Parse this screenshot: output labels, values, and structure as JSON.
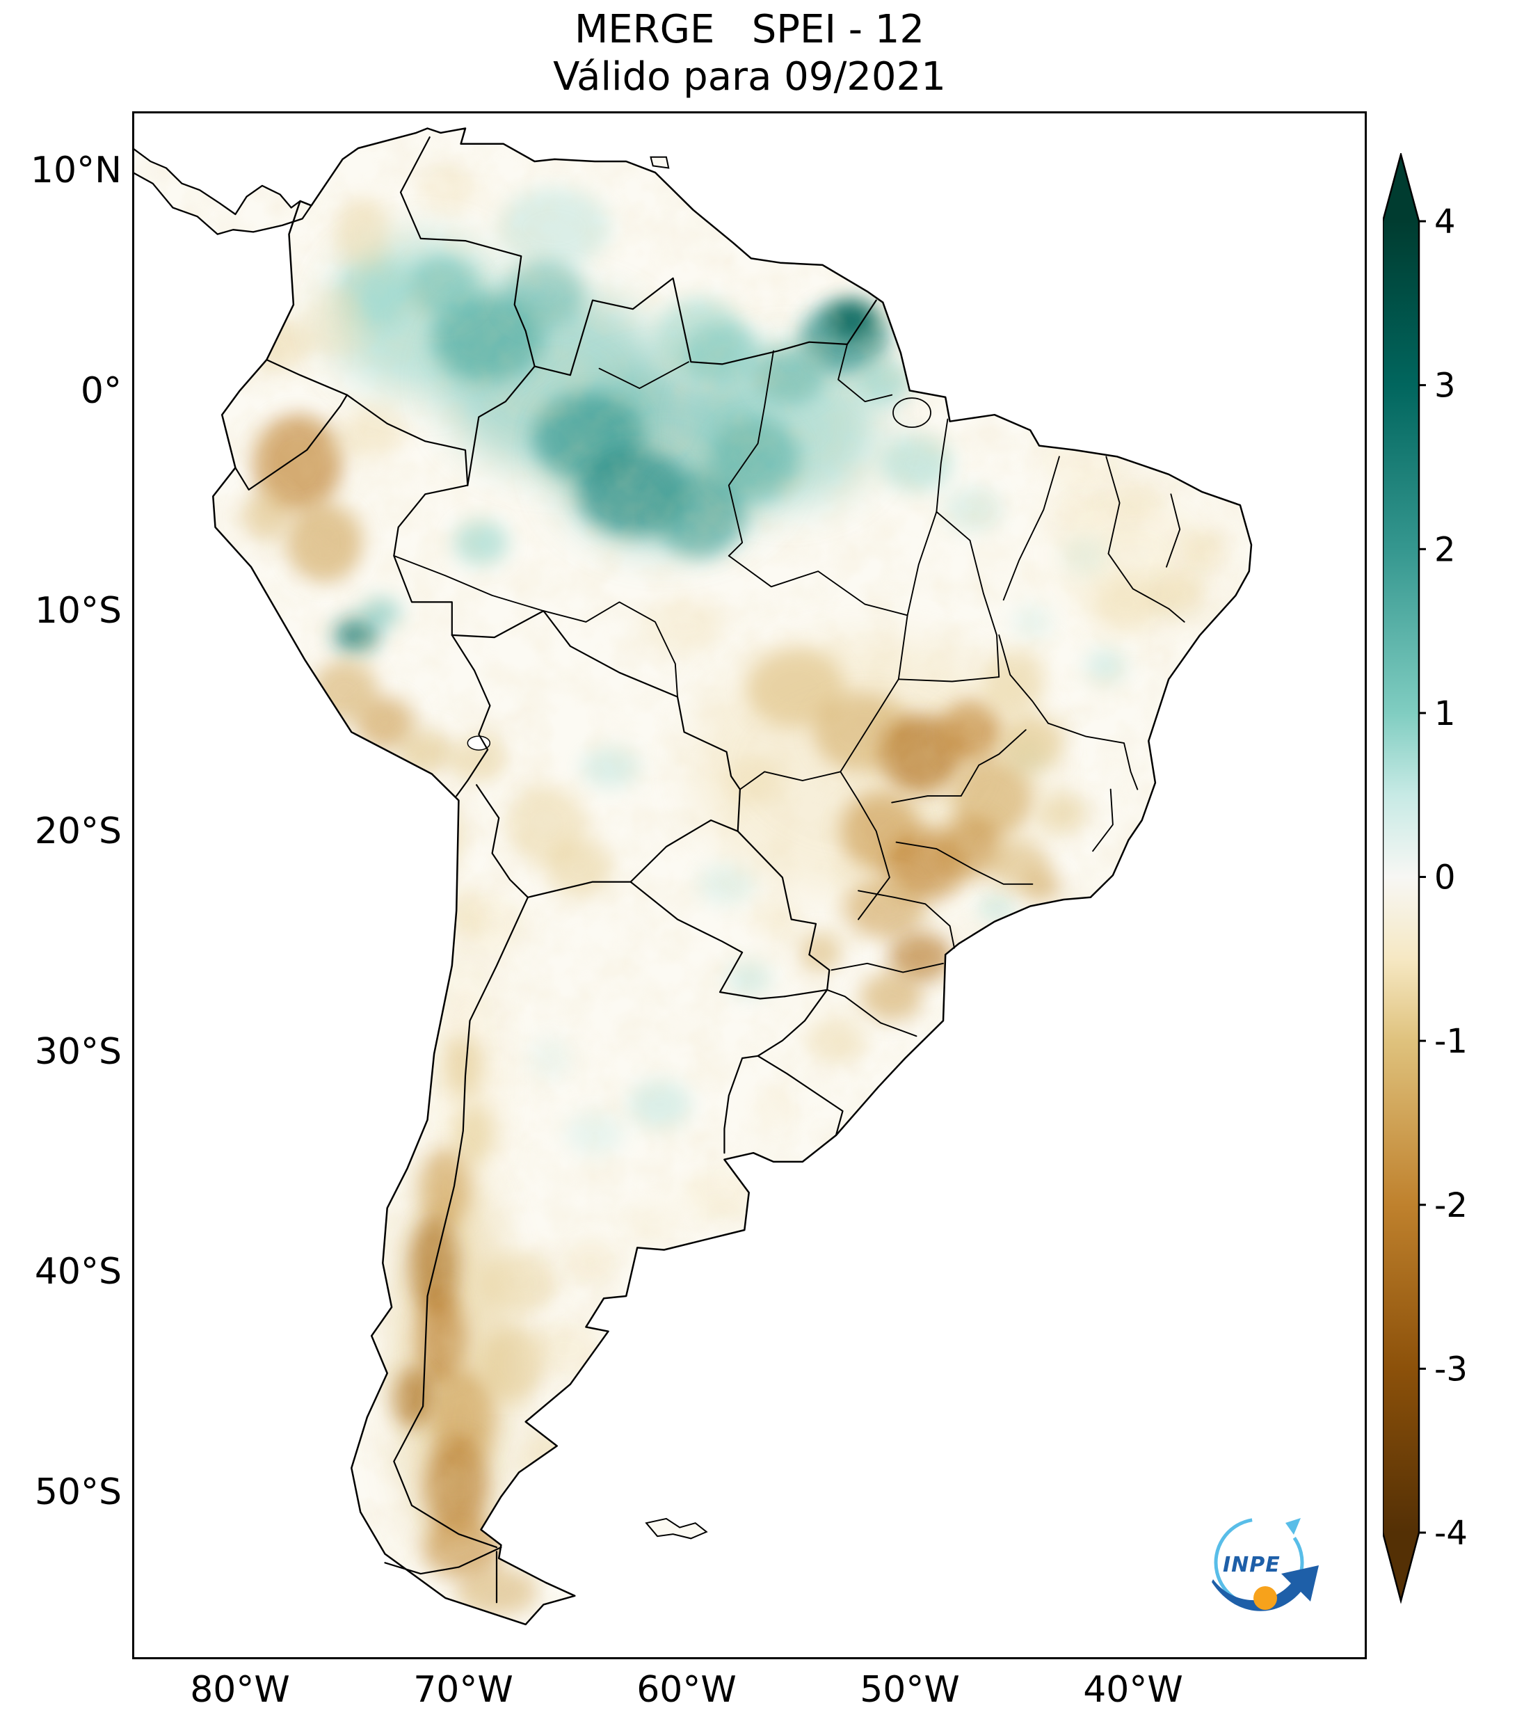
{
  "title": "MERGE   SPEI - 12",
  "subtitle": "Válido para 09/2021",
  "map": {
    "lat_ticks": [
      {
        "label": "10°N",
        "value": 10
      },
      {
        "label": "0°",
        "value": 0
      },
      {
        "label": "10°S",
        "value": -10
      },
      {
        "label": "20°S",
        "value": -20
      },
      {
        "label": "30°S",
        "value": -30
      },
      {
        "label": "40°S",
        "value": -40
      },
      {
        "label": "50°S",
        "value": -50
      }
    ],
    "lon_ticks": [
      {
        "label": "80°W",
        "value": 80
      },
      {
        "label": "70°W",
        "value": 70
      },
      {
        "label": "60°W",
        "value": 60
      },
      {
        "label": "50°W",
        "value": 50
      },
      {
        "label": "40°W",
        "value": 40
      }
    ]
  },
  "colorbar": {
    "ticks": [
      {
        "label": "4",
        "value": 4
      },
      {
        "label": "3",
        "value": 3
      },
      {
        "label": "2",
        "value": 2
      },
      {
        "label": "1",
        "value": 1
      },
      {
        "label": "0",
        "value": 0
      },
      {
        "label": "-1",
        "value": -1
      },
      {
        "label": "-2",
        "value": -2
      },
      {
        "label": "-3",
        "value": -3
      },
      {
        "label": "-4",
        "value": -4
      }
    ],
    "stops": [
      {
        "value": -4,
        "color": "#543005"
      },
      {
        "value": -3,
        "color": "#8c510a"
      },
      {
        "value": -2,
        "color": "#bf812d"
      },
      {
        "value": -1,
        "color": "#dfc27d"
      },
      {
        "value": -0.5,
        "color": "#f6e8c3"
      },
      {
        "value": 0,
        "color": "#f7f7f4"
      },
      {
        "value": 0.5,
        "color": "#c7eae5"
      },
      {
        "value": 1,
        "color": "#80cdc1"
      },
      {
        "value": 2,
        "color": "#35978f"
      },
      {
        "value": 3,
        "color": "#01665e"
      },
      {
        "value": 4,
        "color": "#003c30"
      }
    ]
  },
  "logo": {
    "text": "INPE",
    "arrow_color": "#1e5fa8",
    "swirl_color": "#58bde8",
    "ball_color": "#f7a21b"
  },
  "chart_data": {
    "type": "heatmap",
    "title": "MERGE   SPEI - 12",
    "subtitle": "Válido para 09/2021",
    "index": "SPEI-12",
    "source_label": "MERGE",
    "valid_month": "09/2021",
    "region": "South America",
    "colorbar_range": [
      -4,
      4
    ],
    "colorbar_ticks": [
      4,
      3,
      2,
      1,
      0,
      -1,
      -2,
      -3,
      -4
    ],
    "lat_tick_labels": [
      "10°N",
      "0°",
      "10°S",
      "20°S",
      "30°S",
      "40°S",
      "50°S"
    ],
    "lon_tick_labels": [
      "80°W",
      "70°W",
      "60°W",
      "50°W",
      "40°W"
    ],
    "anomaly_format": [
      "lon_w",
      "lat",
      "rx_deg",
      "ry_deg",
      "spei",
      "opacity",
      "blur_level"
    ],
    "anomalies": [
      [
        72,
        3.5,
        4,
        3.5,
        1.0,
        0.5,
        2
      ],
      [
        66,
        0.5,
        5,
        4,
        1.2,
        0.55,
        2
      ],
      [
        61,
        -3,
        5,
        4,
        1.4,
        0.55,
        2
      ],
      [
        55.5,
        -1.5,
        4,
        3.5,
        1.1,
        0.5,
        2
      ],
      [
        69,
        2.5,
        2.5,
        2,
        1.6,
        0.65,
        1
      ],
      [
        71,
        4.8,
        1.6,
        1.4,
        1.3,
        0.55,
        1
      ],
      [
        66,
        7.5,
        2.5,
        1.8,
        0.7,
        0.4,
        1
      ],
      [
        64.5,
        -2,
        2.5,
        2,
        2.0,
        0.6,
        1
      ],
      [
        62.5,
        -4.5,
        2.5,
        2,
        2.2,
        0.65,
        1
      ],
      [
        59.5,
        -5.5,
        2,
        2,
        1.8,
        0.6,
        1
      ],
      [
        57,
        -3,
        2,
        1.8,
        1.5,
        0.55,
        1
      ],
      [
        59.5,
        2.5,
        2,
        1.8,
        1.0,
        0.45,
        1
      ],
      [
        53,
        2.5,
        2,
        1.6,
        2.2,
        0.7,
        1
      ],
      [
        52.7,
        3.3,
        1.1,
        0.9,
        3.2,
        0.75,
        1
      ],
      [
        55.5,
        0.8,
        1.6,
        1.3,
        1.5,
        0.55,
        1
      ],
      [
        51.2,
        0.5,
        1.2,
        1,
        1.1,
        0.5,
        1
      ],
      [
        58.5,
        1.8,
        1.8,
        1.4,
        1.2,
        0.5,
        1
      ],
      [
        66.5,
        4.5,
        1.8,
        1.5,
        1.4,
        0.55,
        1
      ],
      [
        74,
        4.5,
        1.6,
        1.6,
        0.9,
        0.45,
        1
      ],
      [
        49.8,
        -3.2,
        1.6,
        1.3,
        0.9,
        0.45,
        1
      ],
      [
        47.3,
        -5.3,
        1.3,
        1,
        0.6,
        0.4,
        1
      ],
      [
        74.9,
        -11,
        1.0,
        0.8,
        2.6,
        0.75,
        1
      ],
      [
        73.8,
        -10,
        0.9,
        0.7,
        1.3,
        0.55,
        1
      ],
      [
        69.3,
        -6.8,
        1.2,
        1,
        1.0,
        0.5,
        1
      ],
      [
        63.5,
        -17,
        1.3,
        0.9,
        0.7,
        0.4,
        1
      ],
      [
        58.3,
        -22.3,
        1.3,
        0.9,
        0.6,
        0.35,
        1
      ],
      [
        57.3,
        -26.6,
        1,
        0.8,
        0.7,
        0.4,
        1
      ],
      [
        61.3,
        -32.3,
        1.4,
        1.1,
        0.7,
        0.4,
        1
      ],
      [
        64.2,
        -33.6,
        1.3,
        1,
        0.5,
        0.35,
        1
      ],
      [
        66.2,
        -30.2,
        1,
        1,
        0.4,
        0.3,
        1
      ],
      [
        42.2,
        -7.4,
        1,
        0.9,
        0.6,
        0.35,
        1
      ],
      [
        44.6,
        -10.4,
        0.9,
        0.8,
        0.5,
        0.35,
        1
      ],
      [
        41.3,
        -12.4,
        0.9,
        0.8,
        0.7,
        0.4,
        1
      ],
      [
        44.9,
        -16.6,
        0.8,
        0.7,
        0.6,
        0.35,
        1
      ],
      [
        46.2,
        -23.4,
        0.8,
        0.6,
        0.8,
        0.4,
        1
      ],
      [
        52,
        -17,
        8,
        6,
        -0.6,
        0.4,
        2
      ],
      [
        70.6,
        -44,
        2.5,
        9,
        -1.0,
        0.45,
        2
      ],
      [
        40,
        -7.5,
        3.5,
        3,
        -0.5,
        0.35,
        2
      ],
      [
        70,
        -31,
        1.5,
        6,
        -0.5,
        0.35,
        2
      ],
      [
        77.5,
        -3.2,
        2.0,
        2.2,
        -2.0,
        0.65,
        1
      ],
      [
        78.4,
        2.2,
        1.4,
        1.2,
        -0.8,
        0.45,
        1
      ],
      [
        75.9,
        3.2,
        1.4,
        1.6,
        -0.6,
        0.38,
        1
      ],
      [
        74.6,
        7.3,
        1.3,
        1.6,
        -0.8,
        0.4,
        1
      ],
      [
        70.8,
        9.3,
        1.3,
        1.1,
        -0.6,
        0.35,
        1
      ],
      [
        76.3,
        -6.8,
        1.7,
        1.8,
        -1.5,
        0.6,
        1
      ],
      [
        78.9,
        -5.6,
        1.1,
        1.1,
        -1.2,
        0.5,
        1
      ],
      [
        75.4,
        -13.5,
        1.5,
        1.4,
        -1.4,
        0.55,
        1
      ],
      [
        73.6,
        -15,
        1.3,
        1.2,
        -1.6,
        0.6,
        1
      ],
      [
        71.8,
        -16.3,
        1.2,
        1,
        -1.1,
        0.5,
        1
      ],
      [
        69.4,
        -16.6,
        1.3,
        1.1,
        -0.9,
        0.45,
        1
      ],
      [
        74.2,
        -1.8,
        1.5,
        1.2,
        -0.7,
        0.4,
        1
      ],
      [
        66.4,
        -19.6,
        1.8,
        1.8,
        -0.8,
        0.45,
        1
      ],
      [
        64.9,
        -21.6,
        1.5,
        1.4,
        -0.9,
        0.45,
        1
      ],
      [
        60.2,
        -10.6,
        1.8,
        1.3,
        -0.6,
        0.35,
        1
      ],
      [
        55.2,
        -13.4,
        2.2,
        1.8,
        -1.2,
        0.5,
        1
      ],
      [
        52.2,
        -15.4,
        2.2,
        1.8,
        -1.4,
        0.55,
        1
      ],
      [
        49.6,
        -16.4,
        1.8,
        1.8,
        -2.2,
        0.7,
        1
      ],
      [
        47.4,
        -15.4,
        1.4,
        1.4,
        -2.0,
        0.65,
        1
      ],
      [
        46.4,
        -18.4,
        1.8,
        1.8,
        -1.5,
        0.55,
        1
      ],
      [
        44.6,
        -15.9,
        1.4,
        1.3,
        -1.1,
        0.5,
        1
      ],
      [
        45.4,
        -13.1,
        1.4,
        1.4,
        -0.9,
        0.45,
        1
      ],
      [
        51.4,
        -19.9,
        1.8,
        1.8,
        -1.7,
        0.6,
        1
      ],
      [
        49.4,
        -21.4,
        1.8,
        1.6,
        -2.0,
        0.65,
        1
      ],
      [
        47.4,
        -20.6,
        1.4,
        1.4,
        -1.8,
        0.6,
        1
      ],
      [
        45.2,
        -21.4,
        1.4,
        1.1,
        -1.3,
        0.5,
        1
      ],
      [
        43.2,
        -19.1,
        1.1,
        0.9,
        -1.0,
        0.45,
        1
      ],
      [
        44.2,
        -22.4,
        0.9,
        0.7,
        -1.5,
        0.55,
        1
      ],
      [
        51.2,
        -23.4,
        1.8,
        1.4,
        -1.6,
        0.55,
        1
      ],
      [
        49.6,
        -25.6,
        1.4,
        1.1,
        -2.2,
        0.65,
        1
      ],
      [
        50.9,
        -27.4,
        1.4,
        1.1,
        -1.5,
        0.55,
        1
      ],
      [
        53.4,
        -29.4,
        1.4,
        1.1,
        -0.8,
        0.4,
        1
      ],
      [
        54.1,
        -25.4,
        1,
        0.9,
        -1.3,
        0.5,
        1
      ],
      [
        56.1,
        -23.9,
        1.1,
        0.9,
        -0.6,
        0.35,
        1
      ],
      [
        57.1,
        -17.6,
        1.3,
        1.1,
        -0.7,
        0.4,
        1
      ],
      [
        70.9,
        -20.1,
        0.9,
        1.4,
        -0.9,
        0.45,
        1
      ],
      [
        69.9,
        -23.6,
        0.9,
        1.3,
        -0.7,
        0.4,
        1
      ],
      [
        68.6,
        -24.1,
        1.4,
        1.4,
        -0.5,
        0.3,
        1
      ],
      [
        70.1,
        -30.6,
        0.9,
        1.4,
        -1.1,
        0.45,
        1
      ],
      [
        69.6,
        -33.6,
        0.9,
        1.4,
        -1.0,
        0.45,
        1
      ],
      [
        70.9,
        -36.1,
        1.1,
        1.8,
        -1.7,
        0.55,
        1
      ],
      [
        71.4,
        -39.6,
        1.1,
        2.2,
        -2.4,
        0.65,
        1
      ],
      [
        71.1,
        -42.9,
        1.1,
        2.2,
        -2.1,
        0.6,
        1
      ],
      [
        72.3,
        -45.6,
        0.9,
        1.4,
        -2.4,
        0.65,
        1
      ],
      [
        70.1,
        -46.6,
        1.4,
        2.2,
        -1.7,
        0.55,
        1
      ],
      [
        70.4,
        -49.6,
        1.4,
        2.2,
        -2.2,
        0.6,
        1
      ],
      [
        70.1,
        -52.4,
        1.8,
        1.4,
        -1.9,
        0.55,
        1
      ],
      [
        68.6,
        -54.4,
        1.8,
        1.1,
        -1.4,
        0.5,
        1
      ],
      [
        67.6,
        -40.4,
        1.8,
        1.4,
        -0.9,
        0.4,
        1
      ],
      [
        67.9,
        -44.1,
        1.4,
        1.8,
        -1.1,
        0.45,
        1
      ],
      [
        65.6,
        -43.4,
        1.8,
        1.3,
        -0.6,
        0.35,
        1
      ],
      [
        66.1,
        -48.4,
        1.4,
        1.4,
        -0.8,
        0.4,
        1
      ],
      [
        58.6,
        -36.4,
        1.8,
        1.3,
        -0.5,
        0.3,
        1
      ],
      [
        61.6,
        -37.6,
        1.4,
        1.1,
        -0.4,
        0.28,
        1
      ],
      [
        64.4,
        -39.4,
        1.3,
        1.1,
        -0.6,
        0.35,
        1
      ],
      [
        56.1,
        -32.4,
        1.1,
        0.9,
        -0.4,
        0.28,
        1
      ],
      [
        36.9,
        -7.1,
        1,
        0.9,
        -0.7,
        0.4,
        1
      ],
      [
        38.1,
        -9.1,
        1.3,
        1,
        -0.8,
        0.4,
        1
      ],
      [
        40.4,
        -9.6,
        1.6,
        1.3,
        -0.7,
        0.4,
        1
      ],
      [
        42.4,
        -5.4,
        1.3,
        1,
        -0.5,
        0.33,
        1
      ],
      [
        40.1,
        -4.9,
        1.3,
        1,
        -0.6,
        0.35,
        1
      ],
      [
        42.5,
        -3.2,
        1.8,
        1.2,
        -0.5,
        0.33,
        1
      ]
    ]
  }
}
